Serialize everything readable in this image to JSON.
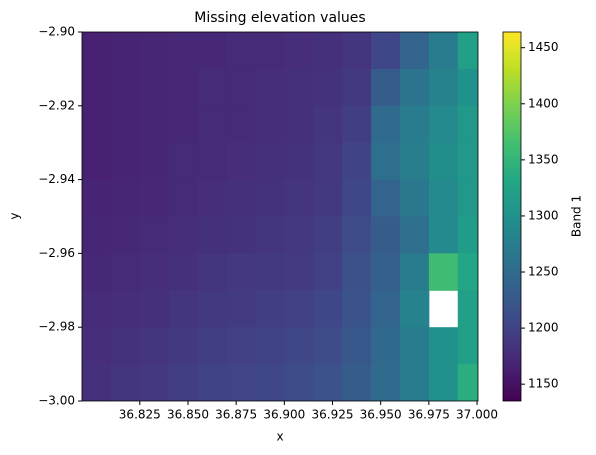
{
  "chart_data": {
    "type": "heatmap",
    "title": "Missing elevation values",
    "x_label": "x",
    "y_label": "y",
    "colorbar_label": "Band 1",
    "colormap": "viridis",
    "x": [
      36.8025,
      36.8175,
      36.8325,
      36.8475,
      36.8625,
      36.8775,
      36.8925,
      36.9075,
      36.9225,
      36.9375,
      36.9525,
      36.9675,
      36.9825,
      36.9975
    ],
    "y": [
      -2.905,
      -2.915,
      -2.925,
      -2.935,
      -2.945,
      -2.955,
      -2.965,
      -2.975,
      -2.985,
      -2.995
    ],
    "values": [
      [
        1165,
        1168,
        1170,
        1172,
        1172,
        1175,
        1175,
        1178,
        1180,
        1185,
        1205,
        1240,
        1270,
        1320
      ],
      [
        1165,
        1168,
        1170,
        1172,
        1175,
        1175,
        1178,
        1180,
        1182,
        1190,
        1230,
        1260,
        1280,
        1300
      ],
      [
        1165,
        1168,
        1170,
        1172,
        1175,
        1175,
        1178,
        1180,
        1185,
        1195,
        1250,
        1270,
        1290,
        1310
      ],
      [
        1165,
        1168,
        1170,
        1175,
        1175,
        1178,
        1180,
        1182,
        1188,
        1200,
        1255,
        1275,
        1295,
        1310
      ],
      [
        1168,
        1170,
        1172,
        1175,
        1178,
        1180,
        1182,
        1185,
        1190,
        1205,
        1240,
        1265,
        1290,
        1310
      ],
      [
        1170,
        1172,
        1175,
        1178,
        1180,
        1182,
        1185,
        1188,
        1195,
        1210,
        1230,
        1255,
        1290,
        1315
      ],
      [
        1172,
        1175,
        1178,
        1180,
        1185,
        1188,
        1190,
        1192,
        1198,
        1215,
        1235,
        1270,
        1360,
        1330
      ],
      [
        1175,
        1178,
        1180,
        1185,
        1190,
        1192,
        1195,
        1198,
        1205,
        1220,
        1240,
        1280,
        null,
        1320
      ],
      [
        1178,
        1182,
        1185,
        1190,
        1195,
        1198,
        1200,
        1205,
        1210,
        1225,
        1245,
        1270,
        1300,
        1320
      ],
      [
        1180,
        1185,
        1188,
        1195,
        1200,
        1202,
        1205,
        1210,
        1218,
        1230,
        1250,
        1270,
        1300,
        1340
      ]
    ],
    "xlim": [
      36.795,
      37.0005
    ],
    "ylim": [
      -3.0,
      -2.9
    ],
    "xticks": [
      36.825,
      {
        "value": 36.85,
        "label": "36.850"
      },
      36.875,
      {
        "value": 36.9,
        "label": "36.900"
      },
      36.925,
      {
        "value": 36.95,
        "label": "36.950"
      },
      36.975,
      {
        "value": 37.0,
        "label": "37.000"
      }
    ],
    "yticks": [
      {
        "value": -2.9,
        "label": "−2.90"
      },
      {
        "value": -2.92,
        "label": "−2.92"
      },
      {
        "value": -2.94,
        "label": "−2.94"
      },
      {
        "value": -2.96,
        "label": "−2.96"
      },
      {
        "value": -2.98,
        "label": "−2.98"
      },
      {
        "value": -3.0,
        "label": "−3.00"
      }
    ],
    "clim": [
      1135,
      1464
    ],
    "cticks": [
      1150,
      1200,
      1250,
      1300,
      1350,
      1400,
      1450
    ]
  }
}
